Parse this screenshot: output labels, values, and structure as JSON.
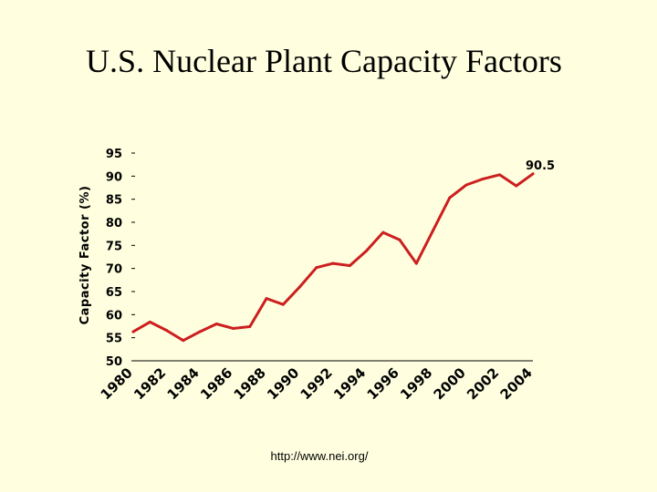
{
  "slide": {
    "source": "http://www.nei.org/"
  },
  "chart_data": {
    "type": "line",
    "title": "U.S. Nuclear Plant Capacity Factors",
    "xlabel": "",
    "ylabel": "Capacity Factor (%)",
    "ylim": [
      50,
      95
    ],
    "yticks": [
      50,
      55,
      60,
      65,
      70,
      75,
      80,
      85,
      90,
      95
    ],
    "xlim": [
      1980,
      2004
    ],
    "xticks": [
      "1980",
      "1982",
      "1984",
      "1986",
      "1988",
      "1990",
      "1992",
      "1994",
      "1996",
      "1998",
      "2000",
      "2002",
      "2004"
    ],
    "grid": false,
    "series_color": "#CC1F1F",
    "series": [
      {
        "name": "",
        "x": [
          1980,
          1981,
          1982,
          1983,
          1984,
          1985,
          1986,
          1987,
          1988,
          1989,
          1990,
          1991,
          1992,
          1993,
          1994,
          1995,
          1996,
          1997,
          1998,
          1999,
          2000,
          2001,
          2002,
          2003,
          2004
        ],
        "values": [
          56.3,
          58.4,
          56.6,
          54.4,
          56.3,
          58.0,
          57.0,
          57.4,
          63.5,
          62.2,
          66.0,
          70.2,
          71.1,
          70.6,
          73.8,
          77.8,
          76.2,
          71.1,
          78.2,
          85.3,
          88.1,
          89.4,
          90.3,
          87.9,
          90.5
        ]
      }
    ],
    "annotations": [
      {
        "text": "90.5",
        "x": 2004,
        "y": 90.5
      }
    ]
  }
}
